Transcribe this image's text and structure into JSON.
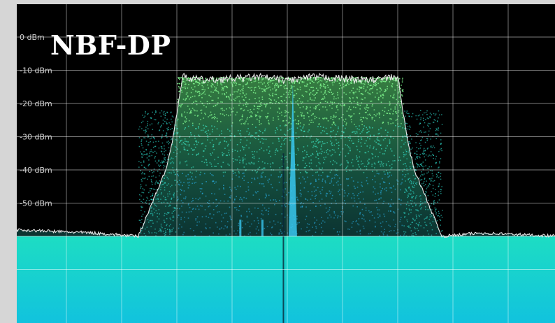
{
  "overlay_title": "NBF-DP",
  "colors": {
    "background": "#000000",
    "grid": "#ffffff",
    "noise_floor": "#22d8f0",
    "noise_floor_low": "#18e6c8",
    "passband_top": "#58f088",
    "passband_mid": "#2ab8e0",
    "trace": "#e8e8e8",
    "frame": "#d6d6d6"
  },
  "chart_data": {
    "type": "area",
    "title": "",
    "xlabel": "",
    "ylabel": "",
    "ylim": [
      -70,
      0
    ],
    "y_ticks": [
      {
        "value": 0,
        "label": "0 dBm"
      },
      {
        "value": -10,
        "label": "-10 dBm"
      },
      {
        "value": -20,
        "label": "-20 dBm"
      },
      {
        "value": -30,
        "label": "-30 dBm"
      },
      {
        "value": -40,
        "label": "-40 dBm"
      },
      {
        "value": -50,
        "label": "-50 dBm"
      }
    ],
    "x_divisions": 10,
    "grid": true,
    "series": [
      {
        "trace": "max-hold",
        "x": [
          0,
          1.5,
          2.3,
          2.8,
          2.9,
          3.0,
          3.1,
          3.5,
          4.5,
          5.0,
          5.5,
          6.5,
          7.0,
          7.1,
          7.2,
          7.3,
          7.8,
          8.5,
          10
        ],
        "values": [
          -58,
          -59,
          -60,
          -40,
          -33,
          -23,
          -12,
          -13,
          -12,
          -13,
          -12,
          -13,
          -12,
          -23,
          -33,
          -40,
          -60,
          -59,
          -60
        ]
      }
    ]
  }
}
